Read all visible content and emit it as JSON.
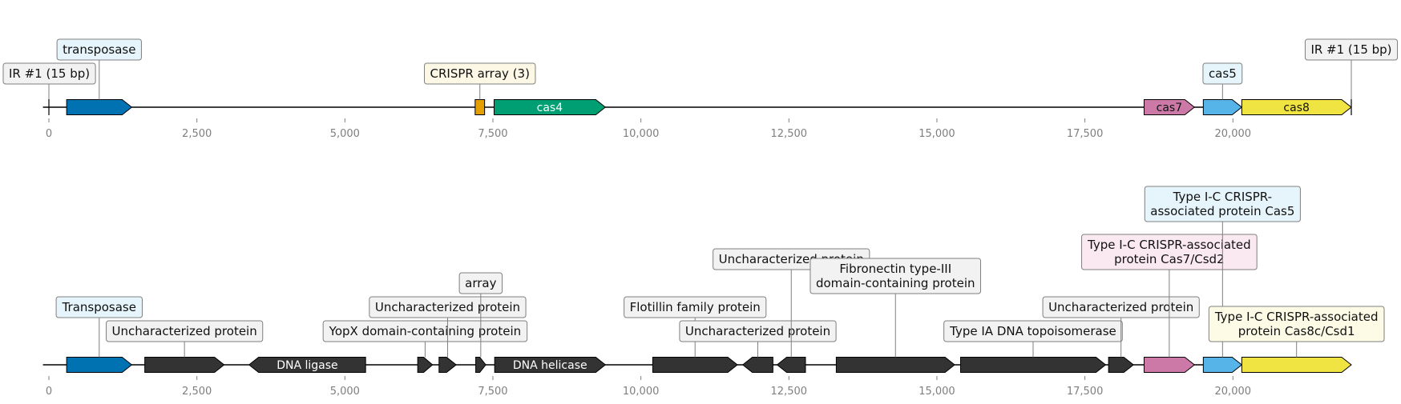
{
  "chart_data": {
    "type": "genome-map",
    "xlim": [
      0,
      22000
    ],
    "tick_values": [
      0,
      2500,
      5000,
      7500,
      10000,
      12500,
      15000,
      17500,
      20000
    ],
    "tick_labels": [
      "0",
      "2,500",
      "5,000",
      "7,500",
      "10,000",
      "12,500",
      "15,000",
      "17,500",
      "20,000"
    ],
    "tracks": [
      {
        "features": [
          {
            "start": 0,
            "end": 0,
            "strand": 0,
            "kind": "marker",
            "label": "IR #1 (15 bp)",
            "label_level": 1,
            "label_bg": "#f2f2f2"
          },
          {
            "start": 300,
            "end": 1400,
            "strand": 1,
            "color": "#0072b2",
            "label": "transposase",
            "label_level": 2,
            "label_bg": "#e6f4fb"
          },
          {
            "start": 7200,
            "end": 7360,
            "strand": 0,
            "color": "#e69f00",
            "label": "CRISPR array (3)",
            "label_level": 1,
            "label_bg": "#fdf7e6"
          },
          {
            "start": 7520,
            "end": 9400,
            "strand": 1,
            "color": "#009e73",
            "text": "cas4",
            "text_color": "#ffffff"
          },
          {
            "start": 18500,
            "end": 19350,
            "strand": 1,
            "color": "#cc79a7",
            "text": "cas7",
            "text_color": "#111111"
          },
          {
            "start": 19500,
            "end": 20150,
            "strand": 1,
            "color": "#56b4e9",
            "label": "cas5",
            "label_level": 1,
            "label_bg": "#e6f4fb"
          },
          {
            "start": 20150,
            "end": 22000,
            "strand": 1,
            "color": "#f0e442",
            "text": "cas8",
            "text_color": "#111111"
          },
          {
            "start": 22000,
            "end": 22000,
            "strand": 0,
            "kind": "marker",
            "label": "IR #1 (15 bp)",
            "label_level": 2,
            "label_bg": "#f2f2f2"
          }
        ]
      },
      {
        "features": [
          {
            "start": 300,
            "end": 1400,
            "strand": 1,
            "color": "#0072b2",
            "label": "Transposase",
            "label_level": 2,
            "label_bg": "#e6f4fb"
          },
          {
            "start": 1620,
            "end": 2960,
            "strand": 1,
            "color": "#333333",
            "label": "Uncharacterized protein",
            "label_level": 1,
            "label_bg": "#f2f2f2"
          },
          {
            "start": 3380,
            "end": 5350,
            "strand": -1,
            "color": "#333333",
            "text": "DNA ligase",
            "text_color": "#ffffff"
          },
          {
            "start": 6230,
            "end": 6480,
            "strand": 1,
            "color": "#333333",
            "label": "YopX domain-containing protein",
            "label_level": 1,
            "label_bg": "#f2f2f2"
          },
          {
            "start": 6590,
            "end": 6880,
            "strand": 1,
            "color": "#333333",
            "label": "Uncharacterized protein",
            "label_level": 2,
            "label_bg": "#f2f2f2"
          },
          {
            "start": 7210,
            "end": 7380,
            "strand": 1,
            "color": "#333333",
            "label": "array",
            "label_level": 3,
            "label_bg": "#f2f2f2"
          },
          {
            "start": 7530,
            "end": 9400,
            "strand": 1,
            "color": "#333333",
            "text": "DNA helicase",
            "text_color": "#ffffff"
          },
          {
            "start": 10200,
            "end": 11630,
            "strand": 1,
            "color": "#333333",
            "label": "Flotillin family protein",
            "label_level": 2,
            "label_bg": "#f2f2f2"
          },
          {
            "start": 11720,
            "end": 12230,
            "strand": -1,
            "color": "#333333",
            "label": "Uncharacterized protein",
            "label_level": 1,
            "label_bg": "#f2f2f2"
          },
          {
            "start": 12300,
            "end": 12780,
            "strand": -1,
            "color": "#333333",
            "label": "Uncharacterized protein",
            "label_level": 4,
            "label_bg": "#f2f2f2"
          },
          {
            "start": 13300,
            "end": 15300,
            "strand": 1,
            "color": "#333333",
            "label": "Fibronectin type-III\ndomain-containing protein",
            "label_level": 3,
            "label_bg": "#f2f2f2"
          },
          {
            "start": 15400,
            "end": 17850,
            "strand": 1,
            "color": "#333333",
            "label": "Type IA DNA topoisomerase",
            "label_level": 1,
            "label_bg": "#f2f2f2"
          },
          {
            "start": 17900,
            "end": 18320,
            "strand": 1,
            "color": "#333333",
            "label": "Uncharacterized protein",
            "label_level": 2,
            "label_bg": "#f2f2f2"
          },
          {
            "start": 18500,
            "end": 19350,
            "strand": 1,
            "color": "#cc79a7",
            "label": "Type I-C CRISPR-associated\nprotein Cas7/Csd2",
            "label_level": 4,
            "label_bg": "#fbe9f2"
          },
          {
            "start": 19500,
            "end": 20150,
            "strand": 1,
            "color": "#56b4e9",
            "label": "Type I-C CRISPR-\nassociated protein Cas5",
            "label_level": 6,
            "label_bg": "#e6f4fb"
          },
          {
            "start": 20150,
            "end": 22000,
            "strand": 1,
            "color": "#f0e442",
            "label": "Type I-C CRISPR-associated\nprotein Cas8c/Csd1",
            "label_level": 1,
            "label_bg": "#fdfbe6"
          }
        ]
      }
    ]
  }
}
